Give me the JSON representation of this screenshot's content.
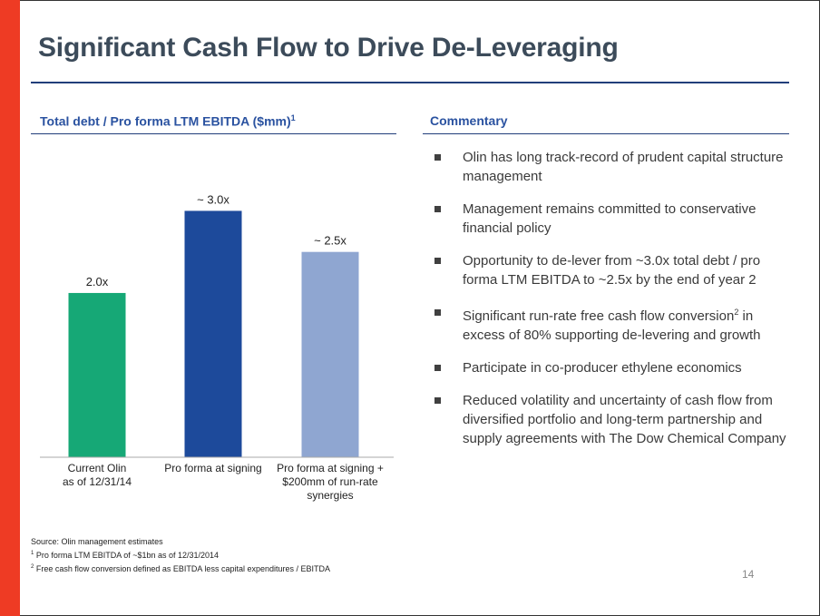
{
  "title": "Significant Cash Flow to Drive De-Leveraging",
  "chart_section": {
    "title": "Total debt / Pro forma LTM EBITDA ($mm)",
    "title_sup": "1"
  },
  "commentary": {
    "title": "Commentary",
    "bullets": [
      {
        "text": "Olin has long track-record of prudent capital structure management"
      },
      {
        "text": "Management remains committed to conservative financial policy"
      },
      {
        "text": "Opportunity to de-lever from ~3.0x total debt / pro forma LTM EBITDA to ~2.5x by the end of year 2"
      },
      {
        "text_before": "Significant run-rate free cash flow conversion",
        "sup": "2",
        "text_after": " in excess of 80% supporting de-levering and growth"
      },
      {
        "text": "Participate in co-producer ethylene economics"
      },
      {
        "text": "Reduced volatility and uncertainty of cash flow from diversified portfolio and long-term partnership and supply agreements with The Dow Chemical Company"
      }
    ]
  },
  "chart_data": {
    "type": "bar",
    "title": "Total debt / Pro forma LTM EBITDA ($mm)",
    "categories": [
      [
        "Current Olin",
        "as of 12/31/14"
      ],
      [
        "Pro forma at signing"
      ],
      [
        "Pro forma at signing +",
        "$200mm of run-rate",
        "synergies"
      ]
    ],
    "values": [
      2.0,
      3.0,
      2.5
    ],
    "data_labels": [
      "2.0x",
      "~ 3.0x",
      "~ 2.5x"
    ],
    "colors": [
      "#16a876",
      "#1d4a9b",
      "#8fa6d1"
    ],
    "ylim": [
      0,
      3.8
    ],
    "grid": false,
    "legend": "none"
  },
  "footnotes": {
    "source": "Source: Olin management estimates",
    "notes": [
      {
        "mark": "1",
        "text": " Pro forma LTM EBITDA of ~$1bn as of 12/31/2014"
      },
      {
        "mark": "2",
        "text": " Free cash flow conversion defined as EBITDA less capital expenditures / EBITDA"
      }
    ]
  },
  "page_number": "14",
  "colors": {
    "accent_bar": "#ee3b24",
    "heading_blue": "#2a52a0",
    "rule_navy": "#213e7a",
    "title_gray": "#3c4b5a"
  }
}
